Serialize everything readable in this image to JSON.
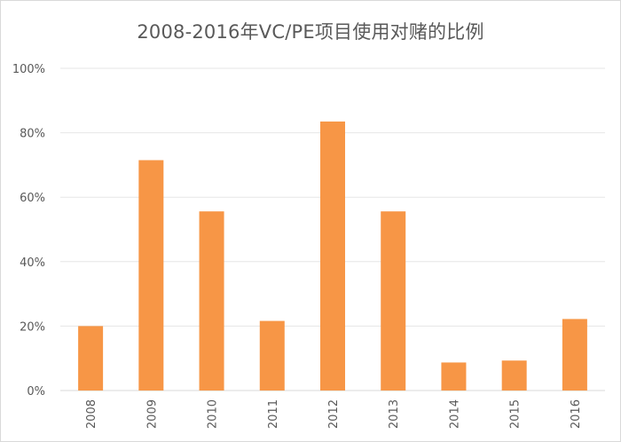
{
  "chart_data": {
    "type": "bar",
    "title": "2008-2016年VC/PE项目使用对赌的比例",
    "xlabel": "",
    "ylabel": "",
    "categories": [
      "2008",
      "2009",
      "2010",
      "2011",
      "2012",
      "2013",
      "2014",
      "2015",
      "2016"
    ],
    "values": [
      0.2,
      0.715,
      0.556,
      0.216,
      0.835,
      0.556,
      0.087,
      0.093,
      0.222
    ],
    "ylim": [
      0,
      1
    ],
    "yticks": [
      0,
      0.2,
      0.4,
      0.6,
      0.8,
      1.0
    ],
    "ytick_labels": [
      "0%",
      "20%",
      "40%",
      "60%",
      "80%",
      "100%"
    ],
    "grid": true,
    "legend": "none",
    "bar_color": "#F79646",
    "grid_color": "#e6e6e6",
    "text_color": "#595959"
  }
}
